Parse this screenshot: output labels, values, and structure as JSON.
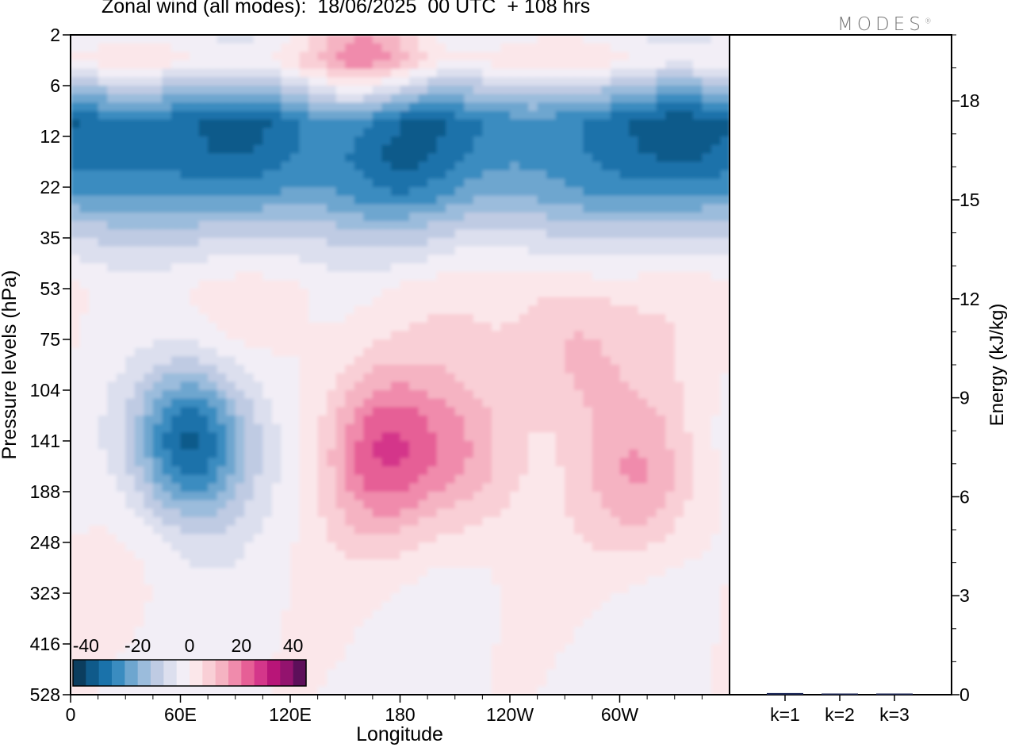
{
  "page": {
    "title": "Zonal wind (all modes):  18/06/2025  00 UTC  + 108 hrs",
    "brand": "MODES",
    "brand_mark": "®"
  },
  "chart_data": [
    {
      "type": "heatmap",
      "title": "Zonal wind (all modes):  18/06/2025  00 UTC  + 108 hrs",
      "xlabel": "Longitude",
      "ylabel": "Pressure levels (hPa)",
      "x_ticks": [
        "0",
        "60E",
        "120E",
        "180",
        "120W",
        "60W"
      ],
      "x_tick_values": [
        0,
        60,
        120,
        180,
        240,
        300
      ],
      "xlim": [
        0,
        360
      ],
      "y_ticks": [
        "2",
        "6",
        "12",
        "22",
        "35",
        "53",
        "75",
        "104",
        "141",
        "188",
        "248",
        "323",
        "416",
        "528"
      ],
      "colorbar": {
        "tick_labels": [
          "-40",
          "-20",
          "0",
          "20",
          "40"
        ],
        "tick_values": [
          -40,
          -20,
          0,
          20,
          40
        ],
        "range": [
          -45,
          45
        ],
        "levels": [
          -45,
          -40,
          -35,
          -30,
          -25,
          -20,
          -15,
          -10,
          -5,
          0,
          5,
          10,
          15,
          20,
          25,
          30,
          35,
          40,
          45
        ],
        "colors": [
          "#0b3d5e",
          "#0f5a8a",
          "#1a72aa",
          "#3a8cc0",
          "#6ea6cf",
          "#9bbcdc",
          "#bfcbe3",
          "#dcdfee",
          "#f2eef6",
          "#fbe7ea",
          "#f9cfd6",
          "#f5b3c2",
          "#f08bac",
          "#e65f96",
          "#d4368a",
          "#b81578",
          "#93136e",
          "#5d0f5a"
        ]
      },
      "field_features": [
        {
          "name": "",
          "lon": 180,
          "level_index": 2.0,
          "value": -38
        },
        {
          "name": "",
          "lon": 100,
          "level_index": 2.2,
          "value": -36
        },
        {
          "name": "",
          "lon": 335,
          "level_index": 2.0,
          "value": -36
        },
        {
          "name": "",
          "lon": 10,
          "level_index": 2.0,
          "value": -34
        },
        {
          "name": "",
          "lon": 65,
          "level_index": 8.0,
          "value": -38
        },
        {
          "name": "",
          "lon": 170,
          "level_index": 8.2,
          "value": 22
        },
        {
          "name": "",
          "lon": 165,
          "level_index": 0.3,
          "value": 18
        },
        {
          "name": "",
          "lon": 218,
          "level_index": 8.3,
          "value": 14
        },
        {
          "name": "",
          "lon": 313,
          "level_index": 8.7,
          "value": 14
        },
        {
          "name": "",
          "lon": 272,
          "level_index": 6.2,
          "value": 12
        }
      ],
      "bands": [
        {
          "level_index": 0.0,
          "value": -3
        },
        {
          "level_index": 0.5,
          "value": 3
        },
        {
          "level_index": 1.1,
          "value": -14
        },
        {
          "level_index": 1.7,
          "value": -30
        },
        {
          "level_index": 2.5,
          "value": -28
        },
        {
          "level_index": 3.2,
          "value": -22
        },
        {
          "level_index": 3.8,
          "value": -12
        },
        {
          "level_index": 4.3,
          "value": -6
        },
        {
          "level_index": 5.0,
          "value": 1
        },
        {
          "level_index": 6.0,
          "value": 2
        },
        {
          "level_index": 8.0,
          "value": 0
        },
        {
          "level_index": 10.0,
          "value": 0
        },
        {
          "level_index": 13.0,
          "value": -2
        }
      ]
    },
    {
      "type": "bar",
      "ylabel": "Energy (kJ/kg)",
      "categories": [
        "k=1",
        "k=2",
        "k=3"
      ],
      "values": [
        0.05,
        0.02,
        0.01
      ],
      "ylim": [
        0,
        20
      ],
      "y_ticks": [
        "0",
        "3",
        "6",
        "9",
        "12",
        "15",
        "18"
      ],
      "y_tick_values": [
        0,
        3,
        6,
        9,
        12,
        15,
        18
      ],
      "bar_color": "#1f2a5a"
    }
  ]
}
